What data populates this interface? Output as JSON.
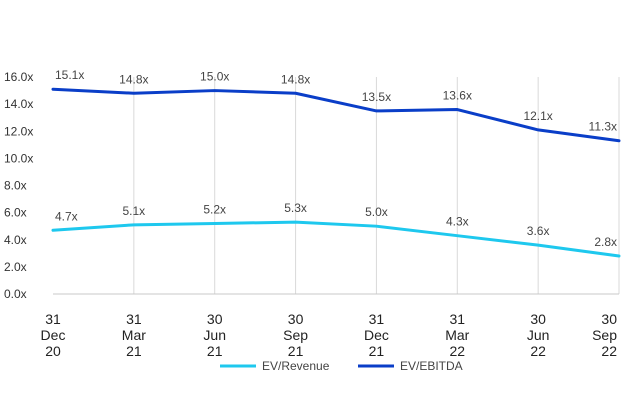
{
  "chart_data": {
    "type": "line",
    "categories": [
      [
        "31",
        "Dec",
        "20"
      ],
      [
        "31",
        "Mar",
        "21"
      ],
      [
        "30",
        "Jun",
        "21"
      ],
      [
        "30",
        "Sep",
        "21"
      ],
      [
        "31",
        "Dec",
        "21"
      ],
      [
        "31",
        "Mar",
        "22"
      ],
      [
        "30",
        "Jun",
        "22"
      ],
      [
        "30",
        "Sep",
        "22"
      ]
    ],
    "ylim": [
      0,
      16
    ],
    "yticks": [
      "0.0x",
      "2.0x",
      "4.0x",
      "6.0x",
      "8.0x",
      "10.0x",
      "12.0x",
      "14.0x",
      "16.0x"
    ],
    "grid": "vertical",
    "legend_position": "bottom",
    "series": [
      {
        "name": "EV/Revenue",
        "color": "#1ec8ee",
        "values": [
          4.7,
          5.1,
          5.2,
          5.3,
          5.0,
          4.3,
          3.6,
          2.8
        ],
        "labels": [
          "4.7x",
          "5.1x",
          "5.2x",
          "5.3x",
          "5.0x",
          "4.3x",
          "3.6x",
          "2.8x"
        ]
      },
      {
        "name": "EV/EBITDA",
        "color": "#0a3ec8",
        "values": [
          15.1,
          14.8,
          15.0,
          14.8,
          13.5,
          13.6,
          12.1,
          11.3
        ],
        "labels": [
          "15.1x",
          "14.8x",
          "15.0x",
          "14.8x",
          "13.5x",
          "13.6x",
          "12.1x",
          "11.3x"
        ]
      }
    ]
  }
}
